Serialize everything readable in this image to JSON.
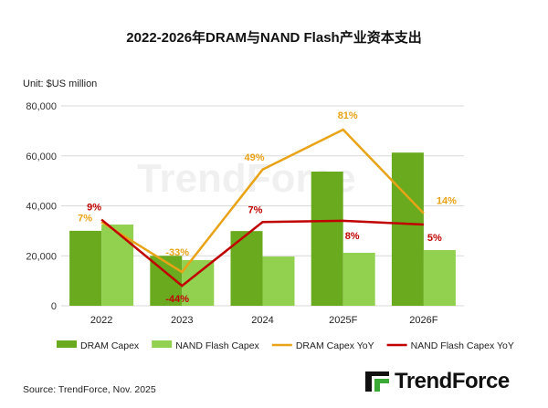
{
  "title": "2022-2026年DRAM与NAND Flash产业资本支出",
  "unit_label": "Unit: $US million",
  "source": "Source: TrendForce, Nov. 2025",
  "logo_text": "TrendForce",
  "watermark_text": "TrendForce",
  "chart_data": {
    "type": "bar",
    "title": "2022-2026年DRAM与NAND Flash产业资本支出",
    "categories": [
      "2022",
      "2023",
      "2024",
      "2025F",
      "2026F"
    ],
    "ylim": [
      0,
      80000
    ],
    "y_ticks": [
      0,
      20000,
      40000,
      60000,
      80000
    ],
    "y_tick_labels": [
      "0",
      "20,000",
      "40,000",
      "60,000",
      "80,000"
    ],
    "y2lim_percent": [
      -60,
      100
    ],
    "grid": true,
    "legend_placement": "bottom",
    "series": [
      {
        "name": "DRAM Capex",
        "type": "bar",
        "color": "#6aaa1e",
        "values": [
          30000,
          20000,
          29900,
          53700,
          61300
        ]
      },
      {
        "name": "NAND Flash Capex",
        "type": "bar",
        "color": "#92d050",
        "values": [
          32500,
          18300,
          19700,
          21200,
          22300
        ]
      },
      {
        "name": "DRAM Capex YoY",
        "type": "line",
        "axis": "secondary",
        "color": "#e8a317",
        "values": [
          7,
          -33,
          49,
          81,
          14
        ],
        "labels": [
          "7%",
          "-33%",
          "49%",
          "81%",
          "14%"
        ]
      },
      {
        "name": "NAND Flash Capex YoY",
        "type": "line",
        "axis": "secondary",
        "color": "#c00000",
        "values": [
          9,
          -44,
          7,
          8,
          5
        ],
        "labels": [
          "9%",
          "-44%",
          "7%",
          "8%",
          "5%"
        ]
      }
    ]
  }
}
